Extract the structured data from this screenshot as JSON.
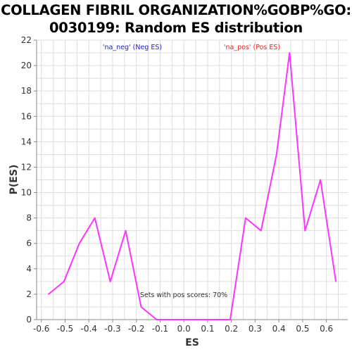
{
  "chart_data": {
    "type": "line",
    "title_line1": "COLLAGEN FIBRIL ORGANIZATION%GOBP%GO:",
    "title_line2": "0030199: Random ES distribution",
    "xlabel": "ES",
    "ylabel": "P(ES)",
    "xlim": [
      -0.62,
      0.69
    ],
    "ylim": [
      0,
      22
    ],
    "x_ticks": [
      "-0.6",
      "-0.5",
      "-0.4",
      "-0.3",
      "-0.2",
      "-0.1",
      "0.0",
      "0.1",
      "0.2",
      "0.3",
      "0.4",
      "0.5",
      "0.6"
    ],
    "y_ticks": [
      "0",
      "2",
      "4",
      "6",
      "8",
      "10",
      "12",
      "14",
      "16",
      "18",
      "20",
      "22"
    ],
    "grid": true,
    "series": [
      {
        "color": "#ff33ff",
        "x": [
          -0.57,
          -0.505,
          -0.44,
          -0.375,
          -0.31,
          -0.245,
          -0.18,
          -0.115,
          -0.05,
          0.015,
          0.08,
          0.145,
          0.195,
          0.26,
          0.325,
          0.39,
          0.445,
          0.51,
          0.575,
          0.64
        ],
        "y": [
          2,
          3,
          6,
          8,
          3,
          7,
          1,
          0,
          0,
          0,
          0,
          0,
          0,
          8,
          7,
          13,
          21,
          7,
          11,
          3
        ]
      }
    ],
    "annotations": {
      "neg_label": "'na_neg' (Neg ES)",
      "pos_label": "'na_pos' (Pos ES)",
      "pos_scores": "Sets with pos scores: 70%"
    },
    "colors": {
      "neg": "#2222cc",
      "pos": "#ee2222",
      "grid": "#dddddd",
      "axis": "#888888"
    }
  }
}
